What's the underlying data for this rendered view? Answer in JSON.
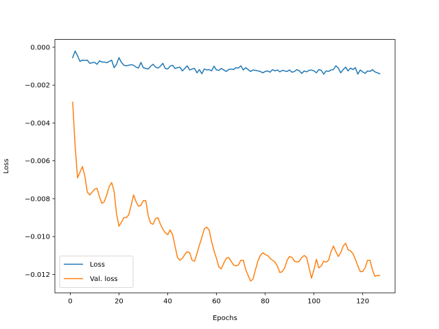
{
  "chart_data": {
    "type": "line",
    "title": "",
    "xlabel": "Epochs",
    "ylabel": "Loss",
    "xlim": [
      -6.3,
      133.3
    ],
    "ylim": [
      -0.01297,
      0.00041
    ],
    "x_ticks": [
      0,
      20,
      40,
      60,
      80,
      100,
      120
    ],
    "y_ticks": [
      0.0,
      -0.002,
      -0.004,
      -0.006,
      -0.008,
      -0.01,
      -0.012
    ],
    "x_tick_labels": [
      "0",
      "20",
      "40",
      "60",
      "80",
      "100",
      "120"
    ],
    "y_tick_labels": [
      "0.000",
      "−0.002",
      "−0.004",
      "−0.006",
      "−0.008",
      "−0.010",
      "−0.012"
    ],
    "grid": false,
    "legend_position": "lower-left",
    "series": [
      {
        "name": "Loss",
        "color": "#1f77b4",
        "x": [
          1,
          2,
          3,
          4,
          5,
          6,
          7,
          8,
          9,
          10,
          11,
          12,
          13,
          14,
          15,
          16,
          17,
          18,
          19,
          20,
          21,
          22,
          23,
          24,
          25,
          26,
          27,
          28,
          29,
          30,
          31,
          32,
          33,
          34,
          35,
          36,
          37,
          38,
          39,
          40,
          41,
          42,
          43,
          44,
          45,
          46,
          47,
          48,
          49,
          50,
          51,
          52,
          53,
          54,
          55,
          56,
          57,
          58,
          59,
          60,
          61,
          62,
          63,
          64,
          65,
          66,
          67,
          68,
          69,
          70,
          71,
          72,
          73,
          74,
          75,
          76,
          77,
          78,
          79,
          80,
          81,
          82,
          83,
          84,
          85,
          86,
          87,
          88,
          89,
          90,
          91,
          92,
          93,
          94,
          95,
          96,
          97,
          98,
          99,
          100,
          101,
          102,
          103,
          104,
          105,
          106,
          107,
          108,
          109,
          110,
          111,
          112,
          113,
          114,
          115,
          116,
          117,
          118,
          119,
          120,
          121,
          122,
          123,
          124,
          125,
          126,
          127
        ],
        "y": [
          -0.00055,
          -0.0002,
          -0.00045,
          -0.00075,
          -0.00068,
          -0.0007,
          -0.00068,
          -0.00085,
          -0.00082,
          -0.0008,
          -0.0009,
          -0.00072,
          -0.00078,
          -0.00078,
          -0.00082,
          -0.00075,
          -0.00068,
          -0.00108,
          -0.0009,
          -0.00055,
          -0.0008,
          -0.00095,
          -0.00098,
          -0.00095,
          -0.00092,
          -0.00095,
          -0.00105,
          -0.0011,
          -0.0008,
          -0.00108,
          -0.00112,
          -0.00115,
          -0.001,
          -0.0009,
          -0.00105,
          -0.0011,
          -0.001,
          -0.00085,
          -0.00112,
          -0.00115,
          -0.001,
          -0.00095,
          -0.00112,
          -0.00108,
          -0.00105,
          -0.00125,
          -0.00112,
          -0.00098,
          -0.0012,
          -0.00115,
          -0.00112,
          -0.00135,
          -0.00118,
          -0.0014,
          -0.00115,
          -0.0012,
          -0.00118,
          -0.00125,
          -0.001,
          -0.0012,
          -0.00122,
          -0.00112,
          -0.0012,
          -0.00128,
          -0.00118,
          -0.00115,
          -0.00118,
          -0.00108,
          -0.0011,
          -0.00098,
          -0.0012,
          -0.00108,
          -0.00118,
          -0.00128,
          -0.0012,
          -0.00122,
          -0.00125,
          -0.00128,
          -0.00135,
          -0.00128,
          -0.00125,
          -0.00132,
          -0.00118,
          -0.00125,
          -0.0012,
          -0.0013,
          -0.00122,
          -0.00125,
          -0.00128,
          -0.0012,
          -0.00132,
          -0.00128,
          -0.00118,
          -0.00125,
          -0.00138,
          -0.00125,
          -0.0013,
          -0.00122,
          -0.0012,
          -0.00125,
          -0.00135,
          -0.00118,
          -0.00122,
          -0.00142,
          -0.00125,
          -0.00128,
          -0.0012,
          -0.00118,
          -0.00098,
          -0.0011,
          -0.00135,
          -0.00118,
          -0.00105,
          -0.00125,
          -0.0011,
          -0.00118,
          -0.00108,
          -0.00142,
          -0.0012,
          -0.0013,
          -0.00138,
          -0.00125,
          -0.00128,
          -0.00118,
          -0.0013,
          -0.00135,
          -0.0014
        ]
      },
      {
        "name": "Val. loss",
        "color": "#ff7f0e",
        "x": [
          1,
          2,
          3,
          4,
          5,
          6,
          7,
          8,
          9,
          10,
          11,
          12,
          13,
          14,
          15,
          16,
          17,
          18,
          19,
          20,
          21,
          22,
          23,
          24,
          25,
          26,
          27,
          28,
          29,
          30,
          31,
          32,
          33,
          34,
          35,
          36,
          37,
          38,
          39,
          40,
          41,
          42,
          43,
          44,
          45,
          46,
          47,
          48,
          49,
          50,
          51,
          52,
          53,
          54,
          55,
          56,
          57,
          58,
          59,
          60,
          61,
          62,
          63,
          64,
          65,
          66,
          67,
          68,
          69,
          70,
          71,
          72,
          73,
          74,
          75,
          76,
          77,
          78,
          79,
          80,
          81,
          82,
          83,
          84,
          85,
          86,
          87,
          88,
          89,
          90,
          91,
          92,
          93,
          94,
          95,
          96,
          97,
          98,
          99,
          100,
          101,
          102,
          103,
          104,
          105,
          106,
          107,
          108,
          109,
          110,
          111,
          112,
          113,
          114,
          115,
          116,
          117,
          118,
          119,
          120,
          121,
          122,
          123,
          124,
          125,
          126,
          127
        ],
        "y": [
          -0.0029,
          -0.0052,
          -0.0069,
          -0.0066,
          -0.0063,
          -0.0068,
          -0.00765,
          -0.0078,
          -0.00765,
          -0.0075,
          -0.00745,
          -0.0079,
          -0.00825,
          -0.00815,
          -0.0078,
          -0.00735,
          -0.00715,
          -0.0076,
          -0.0088,
          -0.00945,
          -0.00925,
          -0.009,
          -0.009,
          -0.00885,
          -0.00835,
          -0.0078,
          -0.00815,
          -0.0084,
          -0.00835,
          -0.0081,
          -0.0081,
          -0.0089,
          -0.0093,
          -0.00935,
          -0.00905,
          -0.009,
          -0.00935,
          -0.0096,
          -0.0098,
          -0.0099,
          -0.00965,
          -0.0099,
          -0.0105,
          -0.0111,
          -0.01125,
          -0.01115,
          -0.01095,
          -0.0108,
          -0.01085,
          -0.01125,
          -0.0113,
          -0.0109,
          -0.01045,
          -0.01005,
          -0.0096,
          -0.0095,
          -0.00965,
          -0.01025,
          -0.01075,
          -0.01115,
          -0.0116,
          -0.0117,
          -0.0114,
          -0.01115,
          -0.0111,
          -0.0113,
          -0.0115,
          -0.01155,
          -0.0115,
          -0.01125,
          -0.01125,
          -0.01175,
          -0.01205,
          -0.01235,
          -0.01225,
          -0.01175,
          -0.0113,
          -0.011,
          -0.01085,
          -0.01095,
          -0.011,
          -0.01115,
          -0.01125,
          -0.01135,
          -0.01155,
          -0.0119,
          -0.01185,
          -0.01165,
          -0.01125,
          -0.01105,
          -0.0111,
          -0.0113,
          -0.01135,
          -0.0113,
          -0.0111,
          -0.011,
          -0.0111,
          -0.01165,
          -0.0122,
          -0.01175,
          -0.0112,
          -0.01165,
          -0.01155,
          -0.0113,
          -0.01135,
          -0.01125,
          -0.0108,
          -0.0105,
          -0.0108,
          -0.01105,
          -0.01085,
          -0.0105,
          -0.01035,
          -0.0107,
          -0.01075,
          -0.0109,
          -0.0112,
          -0.01155,
          -0.01185,
          -0.01185,
          -0.01165,
          -0.01125,
          -0.01125,
          -0.01175,
          -0.0121,
          -0.01205,
          -0.01205
        ]
      }
    ]
  }
}
